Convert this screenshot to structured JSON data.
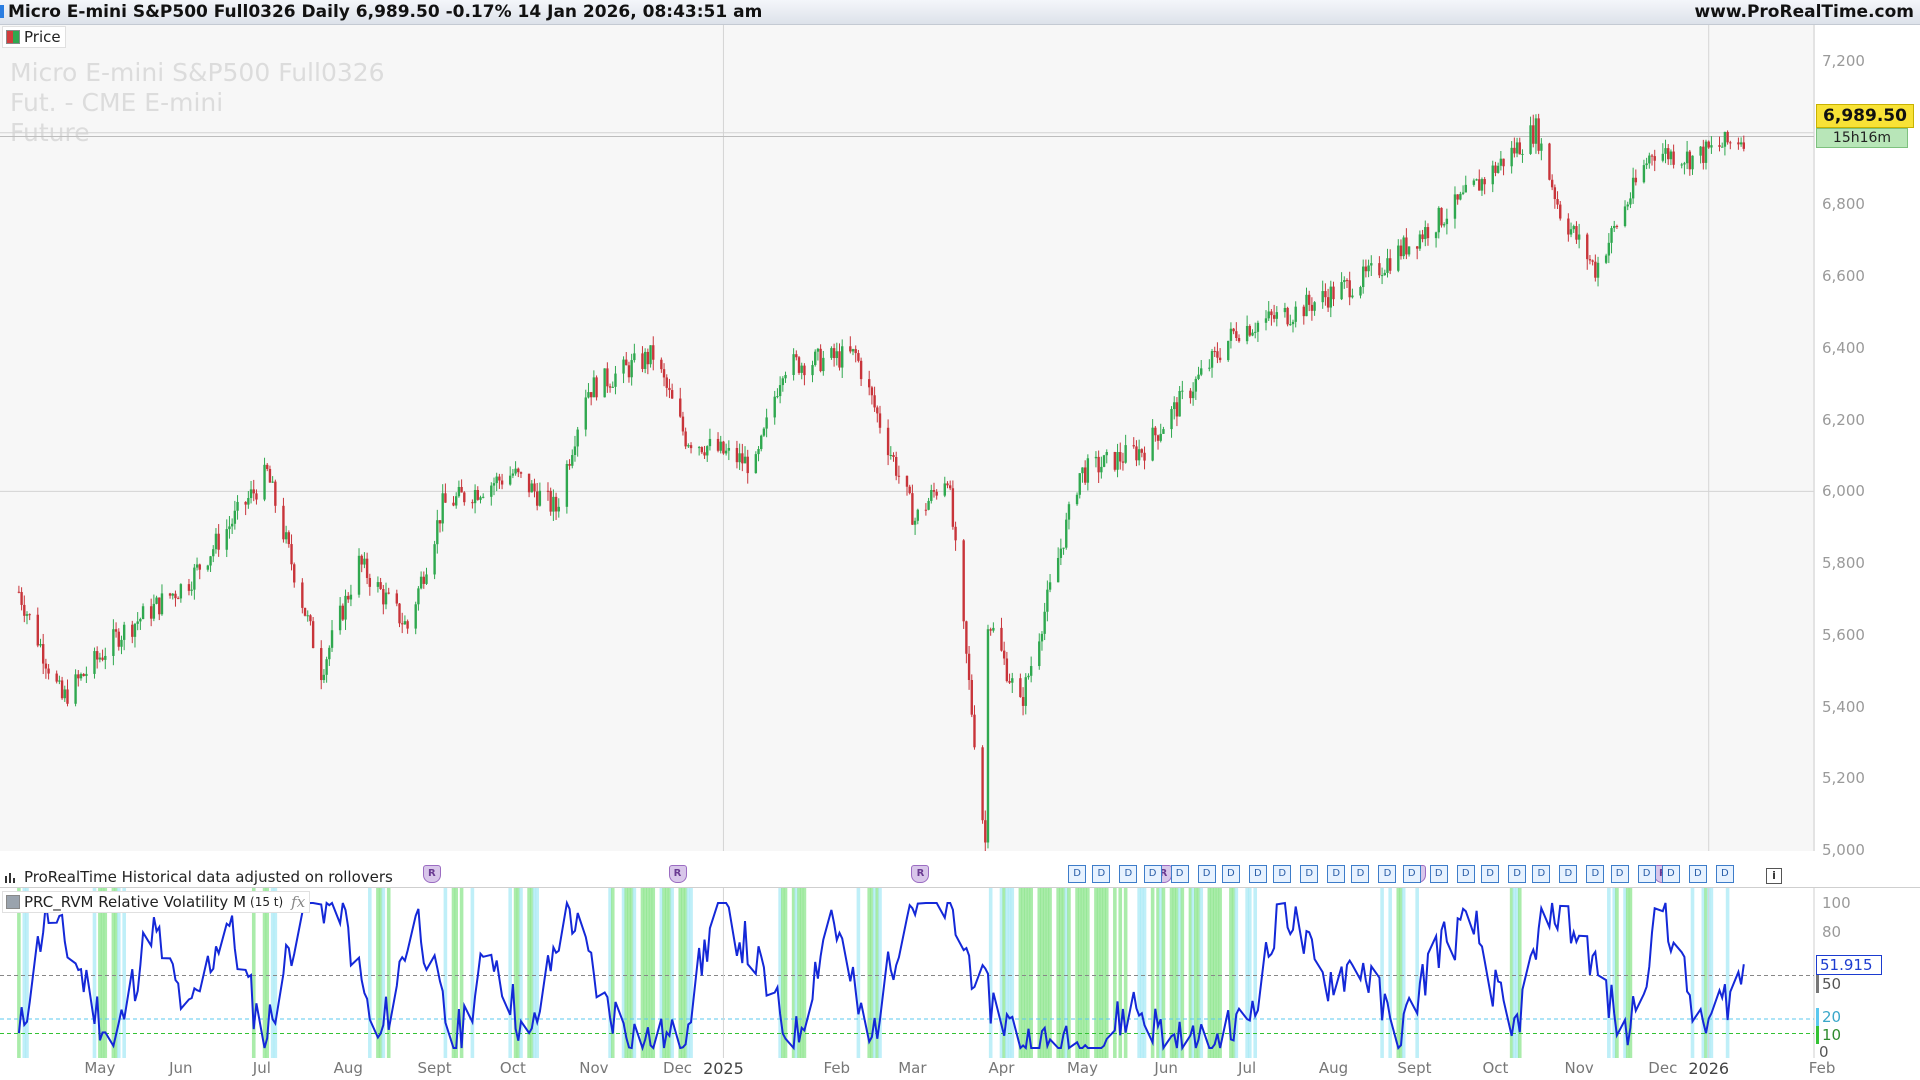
{
  "header": {
    "title": "Micro E-mini S&P500 Full0326 Daily 6,989.50 -0.17% 14 Jan 2026, 08:43:51 am",
    "site": "www.ProRealTime.com"
  },
  "price_panel": {
    "legend": "Price",
    "watermark": [
      "Micro E-mini S&P500 Full0326",
      "Fut. - CME E-mini",
      "Future"
    ],
    "current_price": "6,989.50",
    "time_left": "15h16m",
    "y_ticks": [
      "7,200",
      "7,000",
      "6,800",
      "6,600",
      "6,400",
      "6,200",
      "6,000",
      "5,800",
      "5,600",
      "5,400",
      "5,200",
      "5,000"
    ],
    "history_note": "ProRealTime Historical data adjusted on rollovers"
  },
  "indicator_panel": {
    "legend": "PRC_RVM Relative Volatility M",
    "legend_sub": "(15 t)",
    "fx_icon": "fx-icon",
    "current_value": "51.915",
    "levels": [
      "100",
      "80",
      "50",
      "20",
      "10",
      "0"
    ],
    "badge_50": "50",
    "badge_20": "20",
    "badge_10": "10",
    "badge_0": "0"
  },
  "x_axis": {
    "labels": [
      "May",
      "Jun",
      "Jul",
      "Aug",
      "Sept",
      "Oct",
      "Nov",
      "Dec",
      "2025",
      "Feb",
      "Mar",
      "Apr",
      "May",
      "Jun",
      "Jul",
      "Aug",
      "Sept",
      "Oct",
      "Nov",
      "Dec",
      "2026",
      "Feb"
    ]
  },
  "markers": {
    "rollover_label": "R",
    "dividend_label": "D"
  },
  "colors": {
    "up": "#2fa84f",
    "down": "#c8343a",
    "rvm_line": "#1428d8",
    "highlight_green": "#8ee68e",
    "highlight_cyan": "#a9e9f6",
    "price_badge": "#f8e236"
  },
  "chart_data": [
    {
      "type": "line",
      "subtype": "candlestick",
      "title": "Micro E-mini S&P500 Full0326 Daily",
      "x": [
        "2024-04-15",
        "2024-05-01",
        "2024-05-22",
        "2024-06-17",
        "2024-07-16",
        "2024-08-05",
        "2024-08-19",
        "2024-09-06",
        "2024-09-19",
        "2024-10-15",
        "2024-10-31",
        "2024-11-11",
        "2024-12-06",
        "2024-12-18",
        "2025-01-13",
        "2025-01-23",
        "2025-02-19",
        "2025-03-13",
        "2025-03-25",
        "2025-04-08",
        "2025-04-09",
        "2025-04-21",
        "2025-05-13",
        "2025-06-06",
        "2025-07-10",
        "2025-07-31",
        "2025-08-28",
        "2025-09-30",
        "2025-10-29",
        "2025-11-07",
        "2025-11-20",
        "2025-12-11",
        "2025-12-26",
        "2026-01-14"
      ],
      "close": [
        5720,
        5420,
        5600,
        5750,
        6050,
        5500,
        5800,
        5620,
        5960,
        6050,
        5950,
        6280,
        6380,
        6150,
        6070,
        6350,
        6380,
        5920,
        6050,
        5020,
        5650,
        5400,
        6050,
        6120,
        6450,
        6500,
        6600,
        6800,
        7010,
        6780,
        6620,
        6950,
        6930,
        6989.5
      ],
      "ylim": [
        5000,
        7200
      ]
    },
    {
      "type": "line",
      "title": "PRC_RVM Relative Volatility M",
      "x": [
        "2024-04-15",
        "2024-04-25",
        "2024-05-06",
        "2024-05-20",
        "2024-06-03",
        "2024-06-17",
        "2024-07-01",
        "2024-07-15",
        "2024-07-29",
        "2024-08-12",
        "2024-08-26",
        "2024-09-09",
        "2024-09-23",
        "2024-10-07",
        "2024-10-21",
        "2024-11-04",
        "2024-11-18",
        "2024-12-02",
        "2024-12-16",
        "2024-12-30",
        "2025-01-13",
        "2025-01-27",
        "2025-02-10",
        "2025-02-24",
        "2025-03-10",
        "2025-03-24",
        "2025-04-07",
        "2025-04-21",
        "2025-05-05",
        "2025-05-19",
        "2025-06-02",
        "2025-06-16",
        "2025-06-30",
        "2025-07-14",
        "2025-07-28",
        "2025-08-11",
        "2025-08-25",
        "2025-09-08",
        "2025-09-22",
        "2025-10-06",
        "2025-10-20",
        "2025-11-03",
        "2025-11-17",
        "2025-12-01",
        "2025-12-15",
        "2025-12-29",
        "2026-01-14"
      ],
      "values": [
        5,
        95,
        60,
        0,
        85,
        20,
        90,
        5,
        100,
        100,
        0,
        95,
        0,
        70,
        0,
        100,
        30,
        5,
        5,
        100,
        60,
        0,
        95,
        0,
        100,
        100,
        40,
        5,
        0,
        0,
        30,
        5,
        0,
        20,
        100,
        45,
        60,
        5,
        70,
        85,
        5,
        100,
        70,
        5,
        100,
        10,
        52
      ],
      "levels": [
        100,
        80,
        50,
        20,
        10,
        0
      ],
      "ylim": [
        0,
        100
      ]
    }
  ]
}
